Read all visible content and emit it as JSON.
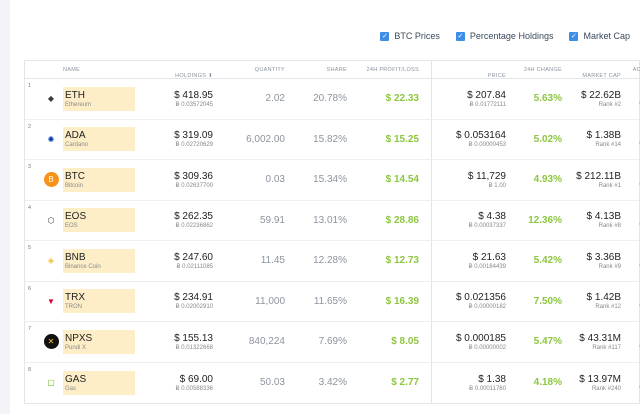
{
  "toggles": [
    {
      "label": "BTC Prices"
    },
    {
      "label": "Percentage Holdings"
    },
    {
      "label": "Market Cap"
    }
  ],
  "headers": {
    "name": "NAME",
    "holdings": "HOLDINGS ⬇",
    "quantity": "QUANTITY",
    "share": "SHARE",
    "pl": "24H PROFIT/LOSS",
    "price": "PRICE",
    "change": "24H CHANGE",
    "mcap": "MARKET CAP",
    "action": "ACTION"
  },
  "rows": [
    {
      "num": "1",
      "icon": "ethereum-icon",
      "sym": "ETH",
      "full": "Ethereum",
      "holding": "$ 418.95",
      "holding_btc": "Ƀ 0.03572045",
      "qty": "2.02",
      "share": "20.78%",
      "pl": "$ 22.33",
      "price": "$ 207.84",
      "price_btc": "Ƀ 0.01772111",
      "change": "5.63%",
      "mcap": "$ 22.62B",
      "rank": "Rank #2"
    },
    {
      "num": "2",
      "icon": "cardano-icon",
      "sym": "ADA",
      "full": "Cardano",
      "holding": "$ 319.09",
      "holding_btc": "Ƀ 0.02720629",
      "qty": "6,002.00",
      "share": "15.82%",
      "pl": "$ 15.25",
      "price": "$ 0.053164",
      "price_btc": "Ƀ 0.00000453",
      "change": "5.02%",
      "mcap": "$ 1.38B",
      "rank": "Rank #14"
    },
    {
      "num": "3",
      "icon": "bitcoin-icon",
      "sym": "BTC",
      "full": "Bitcoin",
      "holding": "$ 309.36",
      "holding_btc": "Ƀ 0.02637700",
      "qty": "0.03",
      "share": "15.34%",
      "pl": "$ 14.54",
      "price": "$ 11,729",
      "price_btc": "Ƀ 1.00",
      "change": "4.93%",
      "mcap": "$ 212.11B",
      "rank": "Rank #1"
    },
    {
      "num": "4",
      "icon": "eos-icon",
      "sym": "EOS",
      "full": "EOS",
      "holding": "$ 262.35",
      "holding_btc": "Ƀ 0.02236862",
      "qty": "59.91",
      "share": "13.01%",
      "pl": "$ 28.86",
      "price": "$ 4.38",
      "price_btc": "Ƀ 0.00037337",
      "change": "12.36%",
      "mcap": "$ 4.13B",
      "rank": "Rank #8"
    },
    {
      "num": "5",
      "icon": "binance-icon",
      "sym": "BNB",
      "full": "Binance Coin",
      "holding": "$ 247.60",
      "holding_btc": "Ƀ 0.02111085",
      "qty": "11.45",
      "share": "12.28%",
      "pl": "$ 12.73",
      "price": "$ 21.63",
      "price_btc": "Ƀ 0.00184439",
      "change": "5.42%",
      "mcap": "$ 3.36B",
      "rank": "Rank #9"
    },
    {
      "num": "6",
      "icon": "tron-icon",
      "sym": "TRX",
      "full": "TRON",
      "holding": "$ 234.91",
      "holding_btc": "Ƀ 0.02002910",
      "qty": "11,000",
      "share": "11.65%",
      "pl": "$ 16.39",
      "price": "$ 0.021356",
      "price_btc": "Ƀ 0.00000182",
      "change": "7.50%",
      "mcap": "$ 1.42B",
      "rank": "Rank #12"
    },
    {
      "num": "7",
      "icon": "pundix-icon",
      "sym": "NPXS",
      "full": "Pundi X",
      "holding": "$ 155.13",
      "holding_btc": "Ƀ 0.01322668",
      "qty": "840,224",
      "share": "7.69%",
      "pl": "$ 8.05",
      "price": "$ 0.000185",
      "price_btc": "Ƀ 0.00000002",
      "change": "5.47%",
      "mcap": "$ 43.31M",
      "rank": "Rank #117"
    },
    {
      "num": "8",
      "icon": "gas-icon",
      "sym": "GAS",
      "full": "Gas",
      "holding": "$ 69.00",
      "holding_btc": "Ƀ 0.00588336",
      "qty": "50.03",
      "share": "3.42%",
      "pl": "$ 2.77",
      "price": "$ 1.38",
      "price_btc": "Ƀ 0.00011760",
      "change": "4.18%",
      "mcap": "$ 13.97M",
      "rank": "Rank #240"
    }
  ]
}
